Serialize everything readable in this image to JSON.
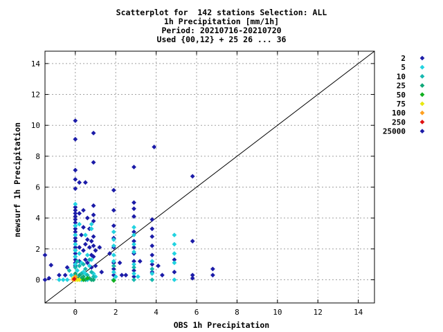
{
  "chart_data": {
    "type": "scatter",
    "title_lines": [
      "Scatterplot for  142 stations Selection: ALL",
      "1h Precipitation [mm/1h]",
      "Period: 20210716-20210720",
      "Used {00,12} + 25 26 ... 36"
    ],
    "xlabel": "OBS 1h Precipitation",
    "ylabel": "newsurf 1h Precipitation",
    "xlim": [
      -1.5,
      14.8
    ],
    "ylim": [
      -1.5,
      14.8
    ],
    "xticks": [
      0,
      2,
      4,
      6,
      8,
      10,
      12,
      14
    ],
    "yticks": [
      0,
      2,
      4,
      6,
      8,
      10,
      12,
      14
    ],
    "grid": true,
    "diagonal": true,
    "legend_position": "right",
    "legend": [
      {
        "label": "2",
        "color": "#1c1ca8"
      },
      {
        "label": "5",
        "color": "#22d3e0"
      },
      {
        "label": "10",
        "color": "#16b8b0"
      },
      {
        "label": "25",
        "color": "#10a878"
      },
      {
        "label": "50",
        "color": "#10b020"
      },
      {
        "label": "75",
        "color": "#e8e810"
      },
      {
        "label": "100",
        "color": "#ffa020"
      },
      {
        "label": "250",
        "color": "#e01010"
      },
      {
        "label": "25000",
        "color": "#1c1ca8"
      }
    ],
    "series": [
      {
        "color": "#1c1ca8",
        "points": [
          [
            -1.5,
            0
          ],
          [
            -1.5,
            1.6
          ],
          [
            -1.3,
            0.1
          ],
          [
            -1.2,
            0.95
          ],
          [
            -0.8,
            0.3
          ],
          [
            -0.5,
            0.3
          ],
          [
            -0.4,
            0.8
          ],
          [
            0,
            10.3
          ],
          [
            0,
            9.1
          ],
          [
            0,
            7.1
          ],
          [
            0,
            6.5
          ],
          [
            0,
            5.9
          ],
          [
            0,
            4.7
          ],
          [
            0,
            4.5
          ],
          [
            0,
            4.3
          ],
          [
            0,
            4.1
          ],
          [
            0,
            3.9
          ],
          [
            0,
            3.7
          ],
          [
            0,
            3.5
          ],
          [
            0,
            3.3
          ],
          [
            0,
            3.1
          ],
          [
            0,
            2.9
          ],
          [
            0,
            2.7
          ],
          [
            0,
            2.5
          ],
          [
            0,
            2.3
          ],
          [
            0,
            2.1
          ],
          [
            0,
            1.9
          ],
          [
            0,
            1.7
          ],
          [
            0,
            1.5
          ],
          [
            0,
            1.3
          ],
          [
            0,
            1.1
          ],
          [
            0,
            0.9
          ],
          [
            0.2,
            6.3
          ],
          [
            0.2,
            4.3
          ],
          [
            0.2,
            2.1
          ],
          [
            0.2,
            1.2
          ],
          [
            0.3,
            2.9
          ],
          [
            0.4,
            4.5
          ],
          [
            0.4,
            3.4
          ],
          [
            0.4,
            1.9
          ],
          [
            0.5,
            6.3
          ],
          [
            0.5,
            2.3
          ],
          [
            0.5,
            1.3
          ],
          [
            0.6,
            4.0
          ],
          [
            0.6,
            2.6
          ],
          [
            0.6,
            1.1
          ],
          [
            0.7,
            3.3
          ],
          [
            0.7,
            2.1
          ],
          [
            0.8,
            2.5
          ],
          [
            0.8,
            1.6
          ],
          [
            0.8,
            0.8
          ],
          [
            0.9,
            9.5
          ],
          [
            0.9,
            7.6
          ],
          [
            0.9,
            4.8
          ],
          [
            0.9,
            4.2
          ],
          [
            0.9,
            3.8
          ],
          [
            0.9,
            2.8
          ],
          [
            0.9,
            2.2
          ],
          [
            0.9,
            1.5
          ],
          [
            1.0,
            1.9
          ],
          [
            1.0,
            0.9
          ],
          [
            1.2,
            2.1
          ],
          [
            1.3,
            0.5
          ],
          [
            1.7,
            1.7
          ],
          [
            1.9,
            5.8
          ],
          [
            1.9,
            4.5
          ],
          [
            1.9,
            3.5
          ],
          [
            1.9,
            2.7
          ],
          [
            1.9,
            2.1
          ],
          [
            1.9,
            1.1
          ],
          [
            1.9,
            0.7
          ],
          [
            1.9,
            0.3
          ],
          [
            2.2,
            1.1
          ],
          [
            2.3,
            0.3
          ],
          [
            2.5,
            0.3
          ],
          [
            2.9,
            7.3
          ],
          [
            2.9,
            5.0
          ],
          [
            2.9,
            4.6
          ],
          [
            2.9,
            4.1
          ],
          [
            2.9,
            3.1
          ],
          [
            2.9,
            2.5
          ],
          [
            2.9,
            2.1
          ],
          [
            2.9,
            1.7
          ],
          [
            2.9,
            1.2
          ],
          [
            2.9,
            0.6
          ],
          [
            2.9,
            0.2
          ],
          [
            3.2,
            1.2
          ],
          [
            3.8,
            3.9
          ],
          [
            3.8,
            3.3
          ],
          [
            3.8,
            2.8
          ],
          [
            3.8,
            2.2
          ],
          [
            3.8,
            1.6
          ],
          [
            3.8,
            1.0
          ],
          [
            3.8,
            0.5
          ],
          [
            3.9,
            8.6
          ],
          [
            4.1,
            0.9
          ],
          [
            4.3,
            0.3
          ],
          [
            4.9,
            1.3
          ],
          [
            4.9,
            0.5
          ],
          [
            5.8,
            6.7
          ],
          [
            5.8,
            2.5
          ],
          [
            5.8,
            0.3
          ],
          [
            5.8,
            0.1
          ],
          [
            6.8,
            0.7
          ],
          [
            6.8,
            0.3
          ]
        ]
      },
      {
        "color": "#22d3e0",
        "points": [
          [
            -0.8,
            0
          ],
          [
            -0.6,
            0
          ],
          [
            -0.4,
            0
          ],
          [
            -0.2,
            0.3
          ],
          [
            0,
            4.9
          ],
          [
            0,
            3.5
          ],
          [
            0,
            2.9
          ],
          [
            0,
            2.3
          ],
          [
            0,
            1.9
          ],
          [
            0,
            1.5
          ],
          [
            0,
            1.0
          ],
          [
            0.1,
            0.6
          ],
          [
            0.2,
            3.6
          ],
          [
            0.2,
            1.7
          ],
          [
            0.3,
            1.1
          ],
          [
            0.3,
            0
          ],
          [
            0.4,
            0.5
          ],
          [
            0.5,
            2.9
          ],
          [
            0.5,
            0.4
          ],
          [
            0.6,
            1.6
          ],
          [
            0.6,
            0
          ],
          [
            0.7,
            0.9
          ],
          [
            0.8,
            3.6
          ],
          [
            0.8,
            3.3
          ],
          [
            0.8,
            1.3
          ],
          [
            0.9,
            0.4
          ],
          [
            1.0,
            0.2
          ],
          [
            1.9,
            3.1
          ],
          [
            1.9,
            2.6
          ],
          [
            1.9,
            2.2
          ],
          [
            1.9,
            1.6
          ],
          [
            1.9,
            1.2
          ],
          [
            1.9,
            0.5
          ],
          [
            2.0,
            0.2
          ],
          [
            2.9,
            3.4
          ],
          [
            2.9,
            2.9
          ],
          [
            2.9,
            2.3
          ],
          [
            2.9,
            1.8
          ],
          [
            2.9,
            1.0
          ],
          [
            2.9,
            0.4
          ],
          [
            3.1,
            0.2
          ],
          [
            3.8,
            1.2
          ],
          [
            3.8,
            0.4
          ],
          [
            4.9,
            2.9
          ],
          [
            4.9,
            2.3
          ],
          [
            4.9,
            1.7
          ],
          [
            4.9,
            1.1
          ],
          [
            4.9,
            0
          ]
        ]
      },
      {
        "color": "#16b8b0",
        "points": [
          [
            -0.3,
            0.6
          ],
          [
            0,
            0.8
          ],
          [
            0,
            0.3
          ],
          [
            0.1,
            1.2
          ],
          [
            0.2,
            0.9
          ],
          [
            0.3,
            0.4
          ],
          [
            0.4,
            1.0
          ],
          [
            0.5,
            0.7
          ],
          [
            0.6,
            0.3
          ],
          [
            0.7,
            1.3
          ],
          [
            0.8,
            0.5
          ],
          [
            0.9,
            0.2
          ],
          [
            1.9,
            0.9
          ],
          [
            1.9,
            0
          ],
          [
            2.9,
            0.8
          ],
          [
            2.9,
            0
          ],
          [
            3.8,
            0.7
          ],
          [
            3.8,
            0
          ]
        ]
      },
      {
        "color": "#10a878",
        "points": [
          [
            0,
            0.4
          ],
          [
            0.1,
            0.1
          ],
          [
            0.2,
            0.3
          ],
          [
            0.3,
            0.1
          ],
          [
            0.4,
            0.2
          ],
          [
            0.5,
            0
          ],
          [
            0.7,
            0.1
          ],
          [
            0.8,
            0
          ],
          [
            0.9,
            0
          ]
        ]
      },
      {
        "color": "#10b020",
        "points": [
          [
            0.4,
            0
          ],
          [
            0.6,
            0.1
          ],
          [
            1.9,
            -0.05
          ]
        ]
      },
      {
        "color": "#e8e810",
        "points": [
          [
            0,
            0
          ],
          [
            0.1,
            0
          ],
          [
            0.2,
            0
          ],
          [
            -0.1,
            0.1
          ]
        ]
      },
      {
        "color": "#ffa020",
        "points": [
          [
            0,
            0.2
          ],
          [
            -0.1,
            0
          ]
        ]
      },
      {
        "color": "#e01010",
        "points": [
          [
            -0.05,
            0.05
          ]
        ]
      }
    ]
  }
}
